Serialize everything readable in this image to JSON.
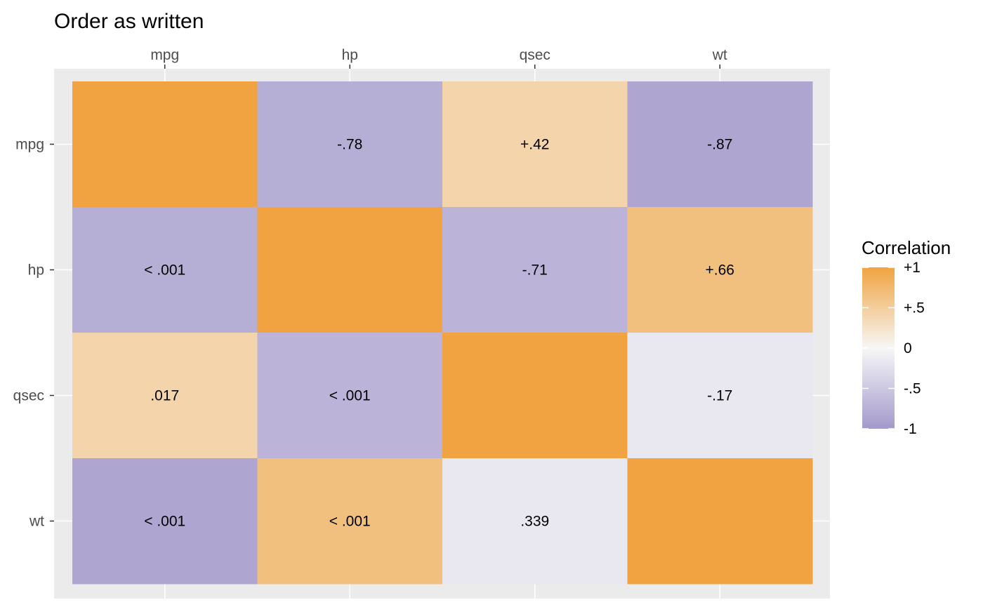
{
  "chart_data": {
    "type": "heatmap",
    "title": "Order as written",
    "x_categories": [
      "mpg",
      "hp",
      "qsec",
      "wt"
    ],
    "y_categories": [
      "mpg",
      "hp",
      "qsec",
      "wt"
    ],
    "correlations": [
      [
        1.0,
        -0.78,
        0.42,
        -0.87
      ],
      [
        -0.78,
        1.0,
        -0.71,
        0.66
      ],
      [
        0.42,
        -0.71,
        1.0,
        -0.17
      ],
      [
        -0.87,
        0.66,
        -0.17,
        1.0
      ]
    ],
    "cell_labels": [
      [
        "",
        "-.78",
        "+.42",
        "-.87"
      ],
      [
        "< .001",
        "",
        "-.71",
        "+.66"
      ],
      [
        ".017",
        "< .001",
        "",
        "-.17"
      ],
      [
        "< .001",
        "< .001",
        ".339",
        ""
      ]
    ],
    "x_axis_position": "top",
    "grid": true,
    "legend": {
      "title": "Correlation",
      "position": "right",
      "range": [
        -1,
        1
      ],
      "ticks": [
        {
          "value": 1,
          "label": "+1"
        },
        {
          "value": 0.5,
          "label": "+.5"
        },
        {
          "value": 0,
          "label": "0"
        },
        {
          "value": -0.5,
          "label": "-.5"
        },
        {
          "value": -1,
          "label": "-1"
        }
      ],
      "colors": {
        "low": "#a399cb",
        "mid": "#f7f7f7",
        "high": "#f0a340"
      }
    }
  }
}
